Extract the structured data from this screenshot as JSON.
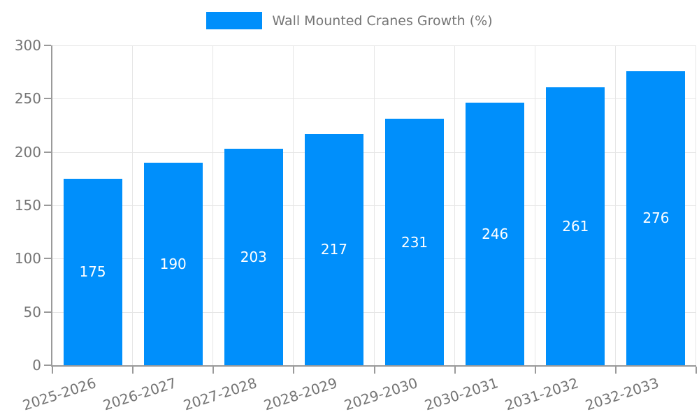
{
  "legend": {
    "label": "Wall Mounted Cranes Growth (%)"
  },
  "chart_data": {
    "type": "bar",
    "title": "Wall Mounted Cranes Growth (%)",
    "categories": [
      "2025-2026",
      "2026-2027",
      "2027-2028",
      "2028-2029",
      "2029-2030",
      "2030-2031",
      "2031-2032",
      "2032-2033"
    ],
    "values": [
      175,
      190,
      203,
      217,
      231,
      246,
      261,
      276
    ],
    "xlabel": "",
    "ylabel": "",
    "ylim": [
      0,
      300
    ],
    "ytick_step": 50,
    "ytick_labels": [
      "0",
      "50",
      "100",
      "150",
      "200",
      "250",
      "300"
    ],
    "grid": true,
    "legend_position": "top-center",
    "value_labels": "centered-in-bar",
    "colors": {
      "bar": "#008FFB",
      "value_label": "#FFFFFF",
      "axis": "#9A9A9A",
      "grid": "#E6E6E6",
      "tick_label": "#757575",
      "legend_text": "#757575"
    },
    "x_label_rotation_deg": -18
  }
}
